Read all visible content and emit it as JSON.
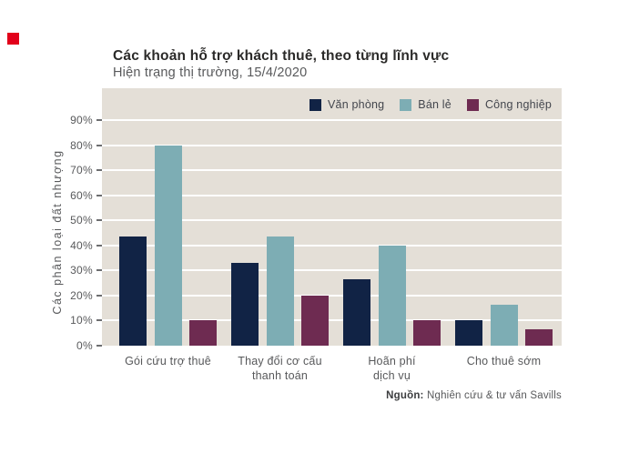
{
  "logo": {
    "color": "#e2001a"
  },
  "header": {
    "title": "Các khoản hỗ trợ khách thuê, theo từng lĩnh vực",
    "subtitle": "Hiện trạng thị trường, 15/4/2020"
  },
  "chart_data": {
    "type": "bar",
    "title": "Các khoản hỗ trợ khách thuê, theo từng lĩnh vực",
    "subtitle": "Hiện trạng thị trường, 15/4/2020",
    "categories": [
      "Gói cứu trợ thuê",
      "Thay đổi cơ cấu\nthanh toán",
      "Hoãn phí\ndịch vụ",
      "Cho thuê sớm"
    ],
    "series": [
      {
        "name": "Văn phòng",
        "color": "#112345",
        "values": [
          43.5,
          33,
          26.5,
          10
        ]
      },
      {
        "name": "Bán lẻ",
        "color": "#7dadb4",
        "values": [
          80,
          43.5,
          40,
          16.5
        ]
      },
      {
        "name": "Công nghiệp",
        "color": "#6e2b51",
        "values": [
          10,
          20,
          10,
          6.5
        ]
      }
    ],
    "xlabel": "",
    "ylabel": "Các phân loại đất nhượng",
    "ytick_values": [
      0,
      10,
      20,
      30,
      40,
      50,
      60,
      70,
      80,
      90
    ],
    "ytick_labels": [
      "0%",
      "10%",
      "20%",
      "30%",
      "40%",
      "50%",
      "60%",
      "70%",
      "80%",
      "90%"
    ],
    "ylim": [
      0,
      100
    ],
    "grid": true,
    "plot_background": "#e4dfd7",
    "gridline_color": "#ffffff",
    "legend_position": "top-right"
  },
  "source": {
    "label": "Nguồn:",
    "text": " Nghiên cứu & tư vấn Savills"
  }
}
